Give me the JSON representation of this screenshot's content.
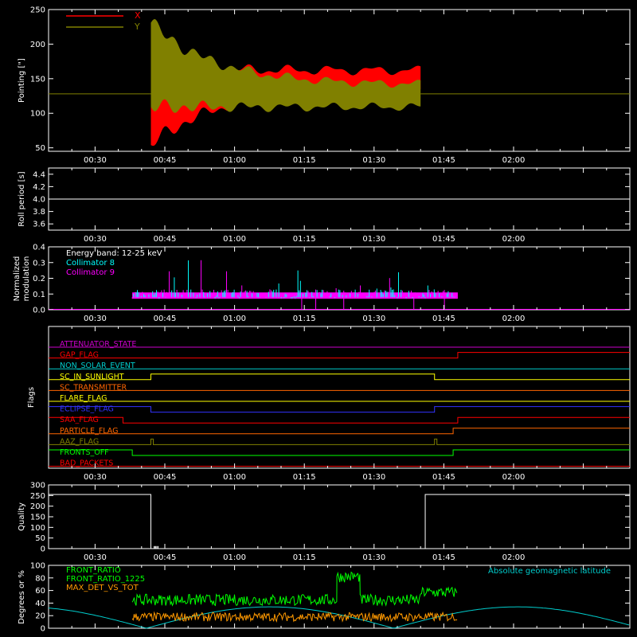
{
  "time_ticks": [
    "00:30",
    "00:45",
    "01:00",
    "01:15",
    "01:30",
    "01:45",
    "02:00"
  ],
  "colors": {
    "axis": "#ffffff",
    "x_series": "#ff0000",
    "y_series": "#808000",
    "collimator8": "#00ffff",
    "collimator9": "#ff00ff",
    "front_ratio": "#00ff00",
    "front_ratio_1225": "#00ff00",
    "max_det": "#ff9900",
    "geomag": "#00cccc"
  },
  "chart_data": [
    {
      "id": "pointing",
      "type": "area",
      "ylabel": "Pointing [\"]",
      "ylim": [
        45,
        250
      ],
      "yticks": [
        "50",
        "100",
        "150",
        "200",
        "250"
      ],
      "legend": [
        {
          "label": "X",
          "color": "#ff0000"
        },
        {
          "label": "Y",
          "color": "#808000"
        }
      ],
      "legend_placement": "top-left",
      "baseline": 128,
      "active_start": "00:42",
      "active_end": "01:40"
    },
    {
      "id": "roll_period",
      "type": "line",
      "ylabel": "Roll period [s]",
      "ylim": [
        3.5,
        4.5
      ],
      "yticks": [
        "3.6",
        "3.8",
        "4.0",
        "4.2",
        "4.4"
      ],
      "value": 4.0
    },
    {
      "id": "modulation",
      "type": "bar",
      "ylabel": "Normalized modulation",
      "ylabel_lines": [
        "Normalized",
        "modulation"
      ],
      "ylim": [
        0,
        0.4
      ],
      "yticks": [
        "0.0",
        "0.1",
        "0.2",
        "0.3",
        "0.4"
      ],
      "annotation": "Energy band: 12-25 keV",
      "legend": [
        {
          "label": "Collimator 8",
          "color": "#00ffff"
        },
        {
          "label": "Collimator 9",
          "color": "#ff00ff"
        }
      ],
      "active_start": "00:38",
      "active_end": "01:48",
      "typical": 0.1
    },
    {
      "id": "flags",
      "type": "line",
      "ylabel": "Flags",
      "flags": [
        {
          "name": "ATTENUATOR_STATE",
          "color": "#cc00cc",
          "steps": []
        },
        {
          "name": "GAP_FLAG",
          "color": "#ff0000",
          "steps": [
            [
              "01:48",
              1
            ]
          ]
        },
        {
          "name": "NON_SOLAR_EVENT",
          "color": "#00cccc",
          "steps": []
        },
        {
          "name": "SC_IN_SUNLIGHT",
          "color": "#ffff00",
          "steps": [
            [
              "00:42",
              1
            ],
            [
              "01:43",
              0
            ]
          ]
        },
        {
          "name": "SC_TRANSMITTER",
          "color": "#ff6600",
          "steps": []
        },
        {
          "name": "FLARE_FLAG",
          "color": "#ffff00",
          "steps": []
        },
        {
          "name": "ECLIPSE_FLAG",
          "color": "#3333ff",
          "steps": [
            [
              "00:42",
              0
            ],
            [
              "01:43",
              1
            ]
          ]
        },
        {
          "name": "SAA_FLAG",
          "color": "#ff0000",
          "steps": [
            [
              "00:36",
              0
            ],
            [
              "01:48",
              1
            ]
          ]
        },
        {
          "name": "PARTICLE_FLAG",
          "color": "#ff6600",
          "steps": [
            [
              "01:47",
              1
            ]
          ]
        },
        {
          "name": "AAZ_FLAG",
          "color": "#808000",
          "pulses": [
            "00:42",
            "01:43"
          ]
        },
        {
          "name": "FRONTS_OFF",
          "color": "#00ff00",
          "steps": [
            [
              "00:38",
              0
            ],
            [
              "01:47",
              1
            ]
          ]
        },
        {
          "name": "BAD_PACKETS",
          "color": "#ff0000",
          "steps": []
        }
      ]
    },
    {
      "id": "quality",
      "type": "line",
      "ylabel": "Quality",
      "ylim": [
        0,
        300
      ],
      "yticks": [
        "0",
        "50",
        "100",
        "150",
        "200",
        "250",
        "300"
      ],
      "segments": [
        {
          "start": "00:20",
          "end": "00:42",
          "value": 255
        },
        {
          "start": "00:42",
          "end": "01:41",
          "value": 0
        },
        {
          "start": "01:41",
          "end": "02:25",
          "value": 255
        }
      ]
    },
    {
      "id": "ratios",
      "type": "line",
      "ylabel": "Degrees or %",
      "ylim": [
        0,
        100
      ],
      "yticks": [
        "0",
        "20",
        "40",
        "60",
        "80",
        "100"
      ],
      "legend": [
        {
          "label": "FRONT_RATIO",
          "color": "#00ff00"
        },
        {
          "label": "FRONT_RATIO_1225",
          "color": "#00ff00"
        },
        {
          "label": "MAX_DET_VS_TOT",
          "color": "#ff9900"
        }
      ],
      "annotation": "Absolute geomagnetic latitude",
      "active_start": "00:38",
      "active_end": "01:48",
      "levels": [
        {
          "start": "00:38",
          "end": "01:22",
          "value": 45
        },
        {
          "start": "01:22",
          "end": "01:27",
          "value": 82
        },
        {
          "start": "01:27",
          "end": "01:40",
          "value": 45
        },
        {
          "start": "01:40",
          "end": "01:48",
          "value": 57
        }
      ],
      "max_det_typical": 18
    }
  ]
}
